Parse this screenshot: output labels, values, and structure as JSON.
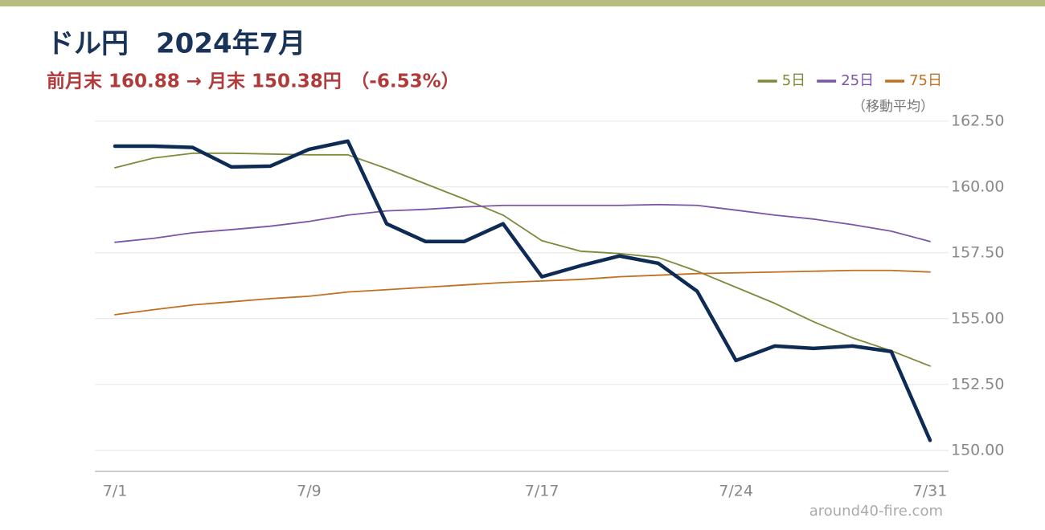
{
  "chart_data": {
    "type": "line",
    "title": "ドル円　2024年7月",
    "subtitle": "前月末 160.88 → 月末 150.38円　（-6.53%）",
    "legend_note": "（移動平均）",
    "source": "around40-fire.com",
    "categories": [
      "7/1",
      null,
      null,
      null,
      null,
      "7/9",
      null,
      null,
      null,
      null,
      null,
      "7/17",
      null,
      null,
      null,
      null,
      "7/24",
      null,
      null,
      null,
      null,
      "7/31"
    ],
    "series": [
      {
        "color": "#0d2b55",
        "values": [
          161.55,
          161.55,
          161.5,
          160.76,
          160.79,
          161.43,
          161.74,
          158.6,
          157.93,
          157.93,
          158.6,
          156.59,
          157.01,
          157.38,
          157.1,
          156.04,
          153.41,
          153.96,
          153.87,
          153.96,
          153.75,
          150.38
        ]
      },
      {
        "name": "5日",
        "color": "#7d8a3a",
        "values": [
          160.73,
          161.1,
          161.28,
          161.28,
          161.25,
          161.22,
          161.22,
          160.7,
          160.12,
          159.54,
          158.93,
          157.96,
          157.56,
          157.47,
          157.32,
          156.8,
          156.19,
          155.58,
          154.88,
          154.27,
          153.78,
          153.2
        ]
      },
      {
        "name": "25日",
        "color": "#7b55a8",
        "values": [
          157.9,
          158.05,
          158.26,
          158.38,
          158.51,
          158.69,
          158.93,
          159.09,
          159.15,
          159.24,
          159.3,
          159.3,
          159.3,
          159.3,
          159.33,
          159.3,
          159.12,
          158.93,
          158.78,
          158.57,
          158.32,
          157.93
        ]
      },
      {
        "name": "75日",
        "color": "#c07020",
        "values": [
          155.15,
          155.34,
          155.52,
          155.64,
          155.76,
          155.85,
          156.01,
          156.1,
          156.19,
          156.28,
          156.37,
          156.43,
          156.49,
          156.59,
          156.65,
          156.71,
          156.74,
          156.77,
          156.8,
          156.83,
          156.83,
          156.77
        ]
      }
    ],
    "ylim": [
      149.2,
      162.83
    ],
    "yticks": [
      {
        "value": 150,
        "label": "150.00"
      },
      {
        "value": 152.5,
        "label": "152.50"
      },
      {
        "value": 155,
        "label": "155.00"
      },
      {
        "value": 157.5,
        "label": "157.50"
      },
      {
        "value": 160,
        "label": "160.00"
      },
      {
        "value": 162.5,
        "label": "162.50"
      }
    ],
    "grid": true
  }
}
